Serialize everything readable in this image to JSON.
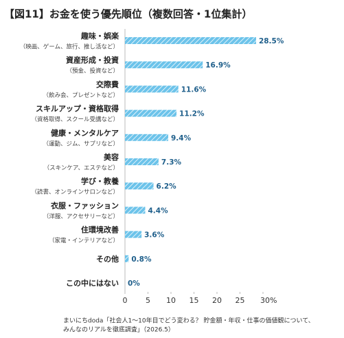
{
  "chart_data": {
    "type": "hbar",
    "title": "【図11】お金を使う優先順位（複数回答・1位集計）",
    "categories": [
      "趣味・娯楽",
      "資産形成・投資",
      "交際費",
      "スキルアップ・資格取得",
      "健康・メンタルケア",
      "美容",
      "学び・教養",
      "衣服・ファッション",
      "住環境改善",
      "その他",
      "この中にはない"
    ],
    "category_notes": [
      "（映画、ゲーム、旅行、推し活など）",
      "（預金、投資など）",
      "（飲み会、プレゼントなど）",
      "（資格取得、スクール受講など）",
      "（運動、ジム、サプリなど）",
      "（スキンケア、エステなど）",
      "（読書、オンラインサロンなど）",
      "（洋服、アクセサリーなど）",
      "（家電・インテリアなど）",
      null,
      null
    ],
    "values": [
      28.5,
      16.9,
      11.6,
      11.2,
      9.4,
      7.3,
      6.2,
      4.4,
      3.6,
      0.8,
      0
    ],
    "value_labels": [
      "28.5%",
      "16.9%",
      "11.6%",
      "11.2%",
      "9.4%",
      "7.3%",
      "6.2%",
      "4.4%",
      "3.6%",
      "0.8%",
      "0%"
    ],
    "color": "#6cc3ea",
    "xlim": [
      0,
      30
    ],
    "xticks": [
      0,
      5,
      10,
      15,
      20,
      25,
      {
        "value": 30,
        "label": "30%"
      }
    ],
    "source": [
      "まいにちdoda「社会人1〜10年目でどう変わる？ 貯金額・年収・仕事の価値観について、",
      "みんなのリアルを徹底調査」（2026.5）"
    ]
  }
}
